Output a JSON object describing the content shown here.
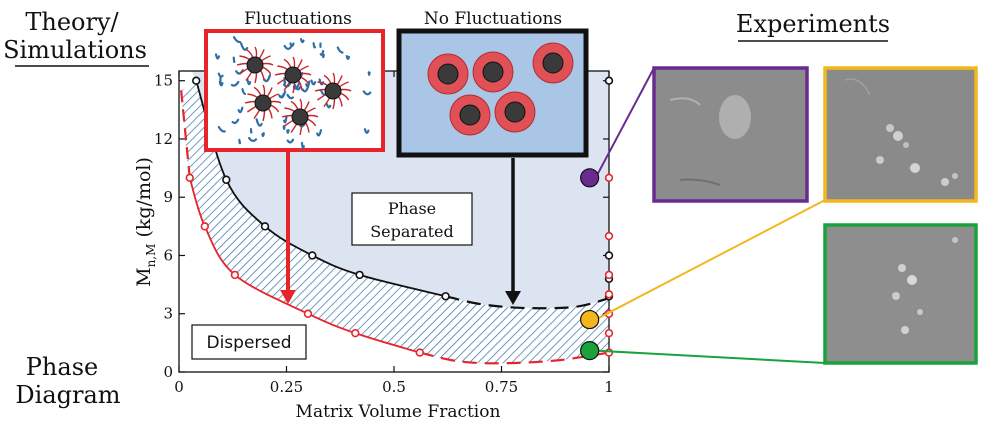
{
  "header": {
    "left_title_line1": "Theory/",
    "left_title_line2": "Simulations",
    "right_title": "Experiments",
    "bottom_label_line1": "Phase",
    "bottom_label_line2": "Diagram"
  },
  "insets": {
    "fluctuations_label": "Fluctuations",
    "no_fluctuations_label": "No Fluctuations"
  },
  "colors": {
    "black_curve": "#111111",
    "red_curve": "#e8242b",
    "region_fill": "#dce4f2",
    "hatch": "#2f6fa8",
    "purple": "#6a2b90",
    "yellow": "#f2b71c",
    "green": "#1aa33d"
  },
  "chart_data": {
    "type": "scatter",
    "xlabel": "Matrix Volume Fraction",
    "ylabel_main": "M",
    "ylabel_sub": "n,M",
    "ylabel_unit": " (kg/mol)",
    "xlim": [
      0,
      1
    ],
    "ylim": [
      0,
      15.5
    ],
    "x_ticks": [
      0,
      0.25,
      0.5,
      0.75,
      1
    ],
    "x_tick_labels": [
      "0",
      "0.25",
      "0.5",
      "0.75",
      "1"
    ],
    "y_ticks": [
      0,
      3,
      6,
      9,
      12,
      15
    ],
    "y_tick_labels": [
      "0",
      "3",
      "6",
      "9",
      "12",
      "15"
    ],
    "annotations": [
      "Phase",
      "Separated",
      "Dispersed"
    ],
    "series": [
      {
        "color": "#111111",
        "x": [
          0.04,
          0.11,
          0.2,
          0.31,
          0.42,
          0.62
        ],
        "y": [
          15.0,
          9.9,
          7.5,
          6.0,
          5.0,
          3.9
        ],
        "dashed_extension": {
          "x": [
            0.62,
            0.7,
            0.8,
            0.92,
            1.0
          ],
          "y": [
            3.9,
            3.5,
            3.3,
            3.35,
            3.8
          ]
        }
      },
      {
        "color": "#e8242b",
        "x": [
          0.025,
          0.06,
          0.13,
          0.3,
          0.41,
          0.56
        ],
        "y": [
          10.0,
          7.5,
          5.0,
          3.0,
          2.0,
          1.0
        ],
        "dashed_extension": {
          "x": [
            0.56,
            0.65,
            0.75,
            0.88,
            1.0
          ],
          "y": [
            1.0,
            0.55,
            0.45,
            0.6,
            1.0
          ]
        },
        "dashed_start": {
          "x": [
            0.005,
            0.025
          ],
          "y": [
            14.5,
            10.0
          ]
        }
      },
      {
        "color": "#111111",
        "x": [
          1,
          1,
          1,
          1
        ],
        "y": [
          15,
          6.0,
          4.8,
          3.9
        ]
      },
      {
        "color": "#e8242b",
        "x": [
          1,
          1,
          1,
          1,
          1,
          1,
          1
        ],
        "y": [
          10.0,
          7.0,
          5.0,
          4.0,
          3.0,
          2.0,
          1.0
        ]
      }
    ],
    "experiment_markers": [
      {
        "color": "#6a2b90",
        "x": 0.955,
        "y": 10.0
      },
      {
        "color": "#f2b71c",
        "x": 0.955,
        "y": 2.7
      },
      {
        "color": "#1aa33d",
        "x": 0.955,
        "y": 1.1
      }
    ]
  }
}
